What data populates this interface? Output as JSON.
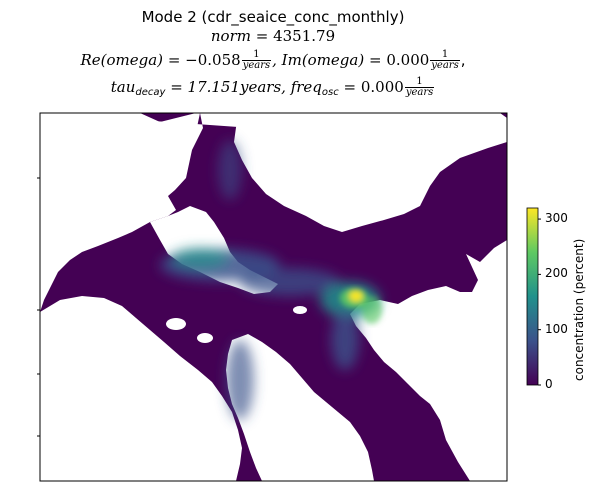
{
  "title": {
    "line1": "Mode 2 (cdr_seaice_conc_monthly)",
    "line2_name": "norm",
    "line2_value": "= 4351.79",
    "line3_re_label": "Re(omega)",
    "line3_re_value": "= −0.058",
    "line3_im_label": ", Im(omega)",
    "line3_im_value": "= 0.000",
    "line4_tau_label": "tau",
    "line4_tau_sub": "decay",
    "line4_tau_value": "= 17.151years, freq",
    "line4_freq_sub": "osc",
    "line4_freq_value": "= 0.000",
    "frac_num": "1",
    "frac_den": "years",
    "trailing_comma": ","
  },
  "colorbar": {
    "label": "concentration (percent)",
    "ticks": [
      "0",
      "100",
      "200",
      "300"
    ],
    "tick_values": [
      0,
      100,
      200,
      300
    ],
    "vmin": 0,
    "vmax": 320,
    "colormap": [
      "#440154",
      "#3b528b",
      "#21918c",
      "#5ec962",
      "#fde725"
    ]
  },
  "colors": {
    "background_ice": "#440154",
    "land": "#ffffff"
  }
}
